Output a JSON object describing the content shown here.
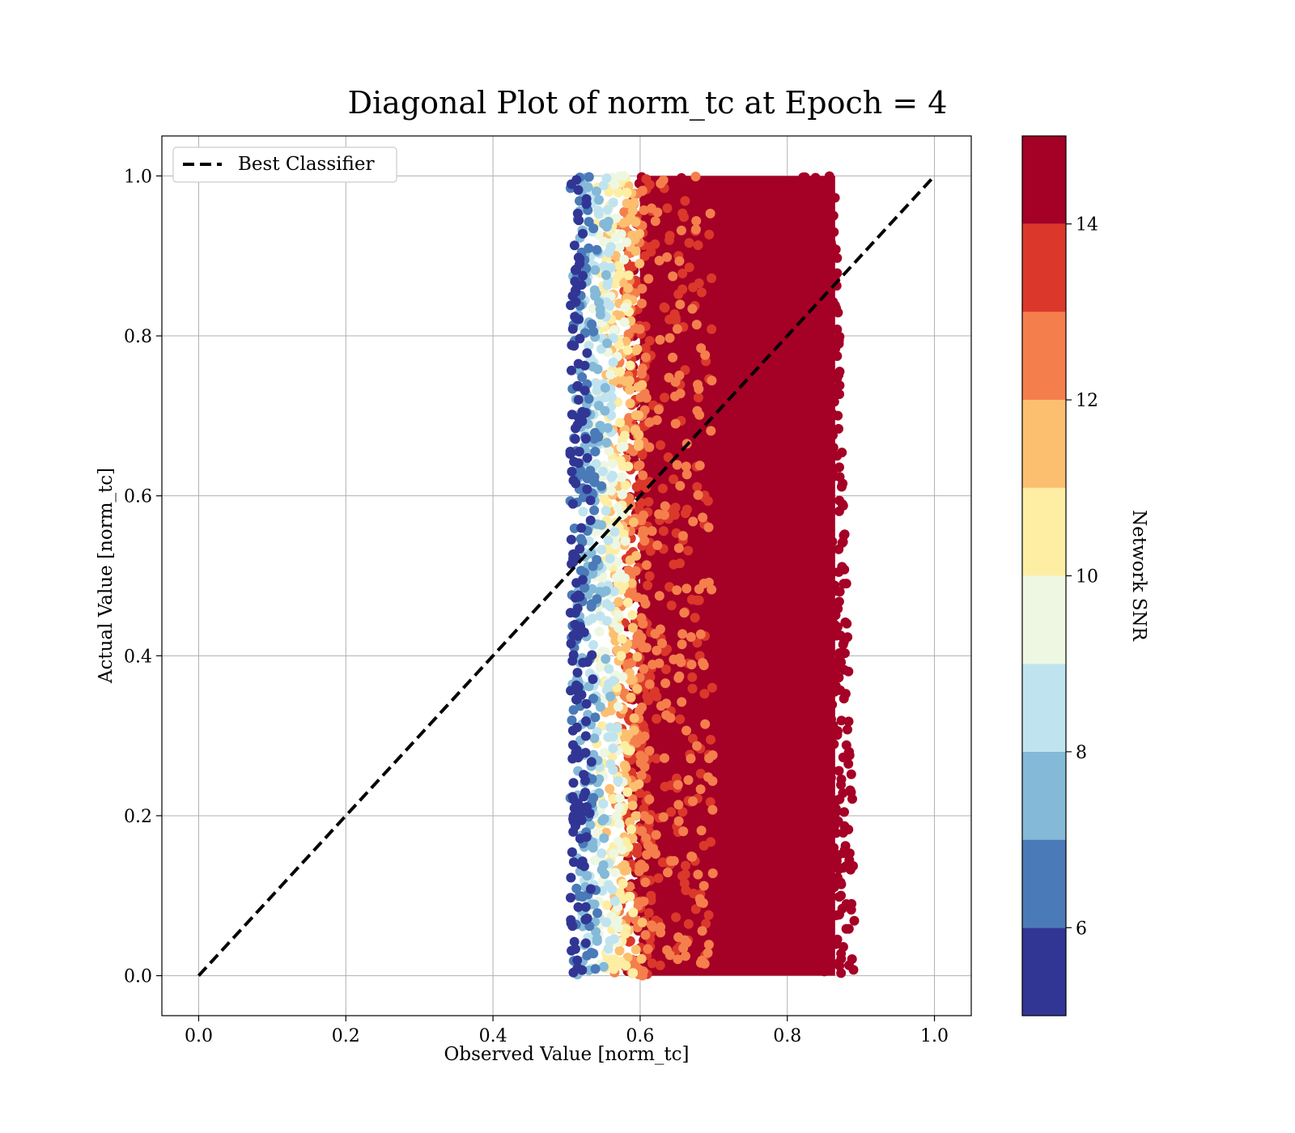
{
  "chart_data": {
    "type": "scatter",
    "title": "Diagonal Plot of norm_tc at Epoch = 4",
    "xlabel": "Observed Value [norm_tc]",
    "ylabel": "Actual Value [norm_tc]",
    "xlim": [
      -0.05,
      1.05
    ],
    "ylim": [
      -0.05,
      1.05
    ],
    "xticks": [
      "0.0",
      "0.2",
      "0.4",
      "0.6",
      "0.8",
      "1.0"
    ],
    "yticks": [
      "0.0",
      "0.2",
      "0.4",
      "0.6",
      "0.8",
      "1.0"
    ],
    "grid": true,
    "legend": {
      "placement": "upper-left",
      "entries": [
        "Best Classifier"
      ]
    },
    "reference_line": {
      "name": "Best Classifier",
      "style": "dashed",
      "color": "#000000",
      "x": [
        0,
        1
      ],
      "y": [
        0,
        1
      ]
    },
    "scatter": {
      "x_range": [
        0.5,
        0.9
      ],
      "y_range": [
        0.0,
        1.0
      ],
      "color_by": "Network SNR",
      "note_values": "dense cloud; color increases from ~5 at x≈0.5 to 15 for x≥0.6"
    },
    "colorbar": {
      "label": "Network SNR",
      "range": [
        5,
        15
      ],
      "ticks": [
        "6",
        "8",
        "10",
        "12",
        "14"
      ],
      "bins": [
        5,
        6,
        7,
        8,
        9,
        10,
        11,
        12,
        13,
        14,
        15
      ],
      "colors": [
        "#313695",
        "#4a7ab7",
        "#84b9d8",
        "#c0e4ef",
        "#eef7e2",
        "#fdeea4",
        "#fcbf70",
        "#f47f4c",
        "#db382b",
        "#a50026"
      ]
    }
  }
}
